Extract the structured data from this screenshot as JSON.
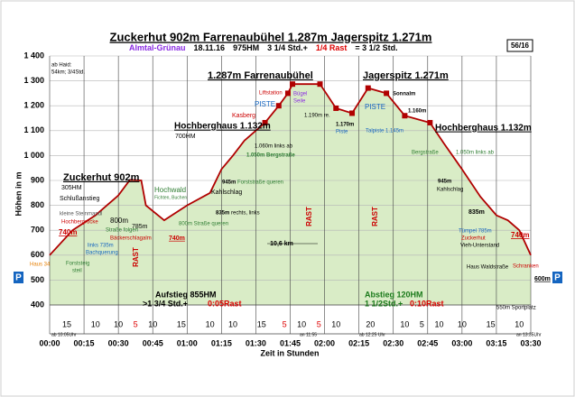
{
  "chart_data": {
    "type": "area",
    "title": "Zuckerhut 902m  Farrenaubühel 1.287m  Jagerspitz 1.271m",
    "subtitle": [
      {
        "text": "Almtal-Grünau",
        "color": "#8a2be2"
      },
      {
        "text": "18.11.16",
        "color": "#000000"
      },
      {
        "text": "975HM",
        "color": "#000000"
      },
      {
        "text": "3 1/4 Std.+",
        "color": "#000000"
      },
      {
        "text": "1/4 Rast",
        "color": "#dd0000"
      },
      {
        "text": "= 3 1/2 Std.",
        "color": "#000000"
      }
    ],
    "badge": "56/16",
    "y_label": "Höhen in m",
    "x_label": "Zeit in Stunden",
    "parking": [
      "P",
      "P"
    ],
    "x": [
      0,
      10,
      20,
      25,
      30,
      35,
      40,
      42,
      50,
      60,
      70,
      75,
      80,
      85,
      94,
      100,
      104,
      106,
      118,
      125,
      132,
      139,
      147,
      155,
      166,
      172,
      180,
      188,
      195,
      200,
      205,
      210
    ],
    "values": [
      600,
      700,
      760,
      800,
      840,
      902,
      900,
      800,
      740,
      800,
      850,
      945,
      1000,
      1060,
      1132,
      1200,
      1250,
      1287,
      1287,
      1190,
      1170,
      1271,
      1250,
      1160,
      1132,
      1050,
      945,
      835,
      760,
      740,
      700,
      600
    ],
    "color": "#b00000",
    "fill": "#d9ecc6",
    "xlim": [
      0,
      210
    ],
    "ylim": [
      400,
      1400
    ],
    "yticks": [
      {
        "value": 400,
        "label": "400"
      },
      {
        "value": 500,
        "label": "500"
      },
      {
        "value": 600,
        "label": "600"
      },
      {
        "value": 700,
        "label": "700"
      },
      {
        "value": 800,
        "label": "800"
      },
      {
        "value": 900,
        "label": "900"
      },
      {
        "value": 1000,
        "label": "1 000"
      },
      {
        "value": 1100,
        "label": "1 100"
      },
      {
        "value": 1200,
        "label": "1 200"
      },
      {
        "value": 1300,
        "label": "1 300"
      },
      {
        "value": 1400,
        "label": "1 400"
      }
    ],
    "xticks": [
      {
        "value": 0,
        "label": "00:00"
      },
      {
        "value": 15,
        "label": "00:15"
      },
      {
        "value": 30,
        "label": "00:30"
      },
      {
        "value": 45,
        "label": "00:45"
      },
      {
        "value": 60,
        "label": "01:00"
      },
      {
        "value": 75,
        "label": "01:15"
      },
      {
        "value": 90,
        "label": "01:30"
      },
      {
        "value": 105,
        "label": "01:45"
      },
      {
        "value": 120,
        "label": "02:00"
      },
      {
        "value": 135,
        "label": "02:15"
      },
      {
        "value": 150,
        "label": "02:30"
      },
      {
        "value": 165,
        "label": "02:45"
      },
      {
        "value": 180,
        "label": "03:00"
      },
      {
        "value": 195,
        "label": "03:15"
      },
      {
        "value": 210,
        "label": "03:30"
      }
    ],
    "grid": true,
    "segments": [
      15,
      10,
      10,
      5,
      10,
      15,
      10,
      10,
      15,
      5,
      10,
      5,
      10,
      20,
      10,
      5,
      10,
      10,
      15,
      10
    ],
    "segment_colors": [
      "#000000",
      "#000000",
      "#000000",
      "#dd0000",
      "#000000",
      "#000000",
      "#000000",
      "#000000",
      "#000000",
      "#dd0000",
      "#000000",
      "#dd0000",
      "#000000",
      "#000000",
      "#000000",
      "#000000",
      "#000000",
      "#000000",
      "#000000",
      "#000000"
    ],
    "annotations": [
      {
        "text": "ab Haid:",
        "color": "#000000"
      },
      {
        "text": "54km;  3/4Std.",
        "color": "#000000"
      },
      {
        "text": "Zuckerhut 902m",
        "color": "#000000"
      },
      {
        "text": "1.287m Farrenaubühel",
        "color": "#000000"
      },
      {
        "text": "Jagerspitz 1.271m",
        "color": "#000000"
      },
      {
        "text": "Hochberghaus 1.132m",
        "color": "#000000"
      },
      {
        "text": "Hochberghaus 1.132m",
        "color": "#000000"
      },
      {
        "text": "700HM",
        "color": "#000000"
      },
      {
        "text": "305HM",
        "color": "#000000"
      },
      {
        "text": "Schlußanstieg",
        "color": "#000000"
      },
      {
        "text": "kleine Steinmandl",
        "color": "#555555"
      },
      {
        "text": "Hochbergrücke",
        "color": "#cc0000"
      },
      {
        "text": "740m",
        "color": "#cc0000"
      },
      {
        "text": "800m",
        "color": "#000000"
      },
      {
        "text": "Straße folgen",
        "color": "#2e7d32"
      },
      {
        "text": "Bäckerschlagalm",
        "color": "#cc0000"
      },
      {
        "text": "links 735m",
        "color": "#1565c0"
      },
      {
        "text": "Bachquerung",
        "color": "#1565c0"
      },
      {
        "text": "Haus 34",
        "color": "#e67e00"
      },
      {
        "text": "Forststeig",
        "color": "#2e7d32"
      },
      {
        "text": "steil",
        "color": "#2e7d32"
      },
      {
        "text": "785m",
        "color": "#000000"
      },
      {
        "text": "740m",
        "color": "#cc0000"
      },
      {
        "text": "Hochwald",
        "color": "#2e7d32"
      },
      {
        "text": "Fichten, Buchen",
        "color": "#2e7d32"
      },
      {
        "text": "Kahlschlag",
        "color": "#000000"
      },
      {
        "text": "945m",
        "color": "#000000"
      },
      {
        "text": "Forststraße queren",
        "color": "#2e7d32"
      },
      {
        "text": "835m",
        "color": "#000000"
      },
      {
        "text": "rechts, links",
        "color": "#000000"
      },
      {
        "text": "800m Straße queren",
        "color": "#2e7d32"
      },
      {
        "text": "Kasberg",
        "color": "#cc0000"
      },
      {
        "text": "PISTE",
        "color": "#1565c0"
      },
      {
        "text": "Liftstation",
        "color": "#cc0000"
      },
      {
        "text": "Bügel",
        "color": "#8a2be2"
      },
      {
        "text": "Seile",
        "color": "#8a2be2"
      },
      {
        "text": "1.060m links ab",
        "color": "#000000"
      },
      {
        "text": "1.050m Bergstraße",
        "color": "#2e7d32"
      },
      {
        "text": "1.190m  re.",
        "color": "#000000"
      },
      {
        "text": "1.170m",
        "color": "#000000"
      },
      {
        "text": "Piste",
        "color": "#1565c0"
      },
      {
        "text": "PISTE",
        "color": "#1565c0"
      },
      {
        "text": "Talpiste 1.145m",
        "color": "#1565c0"
      },
      {
        "text": "Sonnalm",
        "color": "#000000"
      },
      {
        "text": "1.160m",
        "color": "#000000"
      },
      {
        "text": "Bergstraße",
        "color": "#2e7d32"
      },
      {
        "text": "1.050m links ab",
        "color": "#2e7d32"
      },
      {
        "text": "945m",
        "color": "#000000"
      },
      {
        "text": "Kahlschlag",
        "color": "#000000"
      },
      {
        "text": "835m",
        "color": "#000000"
      },
      {
        "text": "Tümpel 785m",
        "color": "#1565c0"
      },
      {
        "text": "Zuckerhut",
        "color": "#cc0000"
      },
      {
        "text": "Vieh-Unterstand",
        "color": "#000000"
      },
      {
        "text": "740m",
        "color": "#cc0000"
      },
      {
        "text": "Haus Waldstraße",
        "color": "#000000"
      },
      {
        "text": "Schranken",
        "color": "#cc0000"
      },
      {
        "text": "600m",
        "color": "#000000"
      },
      {
        "text": "RAST",
        "color": "#cc0000"
      },
      {
        "text": "RAST",
        "color": "#cc0000"
      },
      {
        "text": "RAST",
        "color": "#cc0000"
      },
      {
        "text": "10,6 km",
        "color": "#000000"
      },
      {
        "text": "Aufstieg 855HM",
        "color": "#000000"
      },
      {
        "text": ">1 3/4 Std.+",
        "color": "#000000"
      },
      {
        "text": "0:05Rast",
        "color": "#dd0000"
      },
      {
        "text": "Abstieg 120HM",
        "color": "#1b7a1b"
      },
      {
        "text": "1 1/2Std.+",
        "color": "#1b7a1b"
      },
      {
        "text": "0:10Rast",
        "color": "#dd0000"
      },
      {
        "text": "550m Sportplatz",
        "color": "#000000"
      },
      {
        "text": "ab 10:05Uhr",
        "color": "#000000"
      },
      {
        "text": "an 11:55",
        "color": "#000000"
      },
      {
        "text": "ab 12:25 Uhr",
        "color": "#000000"
      },
      {
        "text": "an 13:35Uhr",
        "color": "#000000"
      }
    ]
  }
}
